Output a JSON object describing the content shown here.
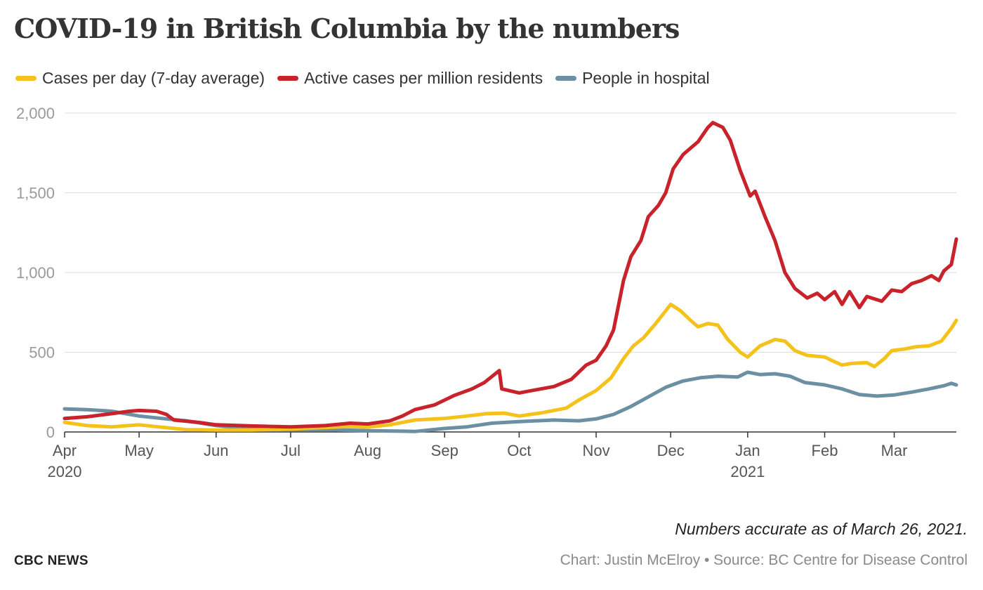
{
  "header": {
    "title": "COVID-19 in British Columbia by the numbers"
  },
  "footer": {
    "note": "Numbers accurate as of March 26, 2021.",
    "brand": "CBC NEWS",
    "credit": "Chart: Justin McElroy • Source: BC Centre for Disease Control"
  },
  "chart_data": {
    "type": "line",
    "title": "COVID-19 in British Columbia by the numbers",
    "xlabel": "",
    "ylabel": "",
    "ylim": [
      0,
      2000
    ],
    "xlim": [
      "2020-04-01",
      "2021-03-26"
    ],
    "y_ticks": [
      "0",
      "500",
      "1,000",
      "1,500",
      "2,000"
    ],
    "y_tick_values": [
      0,
      500,
      1000,
      1500,
      2000
    ],
    "x_ticks": [
      {
        "date": "2020-04-01",
        "label": "Apr",
        "sublabel": "2020"
      },
      {
        "date": "2020-05-01",
        "label": "May",
        "sublabel": ""
      },
      {
        "date": "2020-06-01",
        "label": "Jun",
        "sublabel": ""
      },
      {
        "date": "2020-07-01",
        "label": "Jul",
        "sublabel": ""
      },
      {
        "date": "2020-08-01",
        "label": "Aug",
        "sublabel": ""
      },
      {
        "date": "2020-09-01",
        "label": "Sep",
        "sublabel": ""
      },
      {
        "date": "2020-10-01",
        "label": "Oct",
        "sublabel": ""
      },
      {
        "date": "2020-11-01",
        "label": "Nov",
        "sublabel": ""
      },
      {
        "date": "2020-12-01",
        "label": "Dec",
        "sublabel": ""
      },
      {
        "date": "2021-01-01",
        "label": "Jan",
        "sublabel": "2021"
      },
      {
        "date": "2021-02-01",
        "label": "Feb",
        "sublabel": ""
      },
      {
        "date": "2021-03-01",
        "label": "Mar",
        "sublabel": ""
      }
    ],
    "grid": true,
    "legend_position": "top-left",
    "series": [
      {
        "name": "Cases per day (7-day average)",
        "color": "#f5c21b",
        "points": [
          [
            "2020-04-01",
            60
          ],
          [
            "2020-04-10",
            40
          ],
          [
            "2020-04-20",
            32
          ],
          [
            "2020-05-01",
            45
          ],
          [
            "2020-05-10",
            30
          ],
          [
            "2020-05-20",
            15
          ],
          [
            "2020-06-01",
            12
          ],
          [
            "2020-06-15",
            12
          ],
          [
            "2020-07-01",
            18
          ],
          [
            "2020-07-15",
            28
          ],
          [
            "2020-07-25",
            35
          ],
          [
            "2020-08-01",
            30
          ],
          [
            "2020-08-10",
            45
          ],
          [
            "2020-08-20",
            75
          ],
          [
            "2020-09-01",
            85
          ],
          [
            "2020-09-10",
            100
          ],
          [
            "2020-09-18",
            115
          ],
          [
            "2020-09-25",
            118
          ],
          [
            "2020-10-01",
            100
          ],
          [
            "2020-10-10",
            120
          ],
          [
            "2020-10-20",
            150
          ],
          [
            "2020-10-25",
            200
          ],
          [
            "2020-11-01",
            260
          ],
          [
            "2020-11-07",
            340
          ],
          [
            "2020-11-12",
            460
          ],
          [
            "2020-11-16",
            540
          ],
          [
            "2020-11-20",
            590
          ],
          [
            "2020-11-25",
            680
          ],
          [
            "2020-11-29",
            760
          ],
          [
            "2020-12-01",
            800
          ],
          [
            "2020-12-05",
            760
          ],
          [
            "2020-12-09",
            700
          ],
          [
            "2020-12-12",
            660
          ],
          [
            "2020-12-16",
            680
          ],
          [
            "2020-12-20",
            670
          ],
          [
            "2020-12-24",
            580
          ],
          [
            "2020-12-29",
            500
          ],
          [
            "2021-01-01",
            470
          ],
          [
            "2021-01-06",
            540
          ],
          [
            "2021-01-12",
            580
          ],
          [
            "2021-01-16",
            570
          ],
          [
            "2021-01-20",
            510
          ],
          [
            "2021-01-25",
            480
          ],
          [
            "2021-02-01",
            470
          ],
          [
            "2021-02-05",
            440
          ],
          [
            "2021-02-08",
            420
          ],
          [
            "2021-02-12",
            430
          ],
          [
            "2021-02-18",
            435
          ],
          [
            "2021-02-21",
            410
          ],
          [
            "2021-02-25",
            460
          ],
          [
            "2021-02-28",
            510
          ],
          [
            "2021-03-05",
            520
          ],
          [
            "2021-03-10",
            535
          ],
          [
            "2021-03-15",
            540
          ],
          [
            "2021-03-20",
            570
          ],
          [
            "2021-03-24",
            650
          ],
          [
            "2021-03-26",
            700
          ]
        ]
      },
      {
        "name": "Active cases per million residents",
        "color": "#c8222a",
        "points": [
          [
            "2020-04-01",
            85
          ],
          [
            "2020-04-10",
            95
          ],
          [
            "2020-04-20",
            115
          ],
          [
            "2020-04-27",
            130
          ],
          [
            "2020-05-01",
            135
          ],
          [
            "2020-05-08",
            130
          ],
          [
            "2020-05-12",
            110
          ],
          [
            "2020-05-15",
            75
          ],
          [
            "2020-05-25",
            60
          ],
          [
            "2020-06-01",
            45
          ],
          [
            "2020-06-15",
            38
          ],
          [
            "2020-07-01",
            32
          ],
          [
            "2020-07-15",
            40
          ],
          [
            "2020-07-25",
            55
          ],
          [
            "2020-08-01",
            50
          ],
          [
            "2020-08-10",
            70
          ],
          [
            "2020-08-15",
            100
          ],
          [
            "2020-08-20",
            140
          ],
          [
            "2020-08-28",
            170
          ],
          [
            "2020-09-05",
            230
          ],
          [
            "2020-09-12",
            270
          ],
          [
            "2020-09-17",
            310
          ],
          [
            "2020-09-21",
            360
          ],
          [
            "2020-09-23",
            385
          ],
          [
            "2020-09-24",
            270
          ],
          [
            "2020-10-01",
            245
          ],
          [
            "2020-10-08",
            265
          ],
          [
            "2020-10-15",
            285
          ],
          [
            "2020-10-22",
            330
          ],
          [
            "2020-10-28",
            420
          ],
          [
            "2020-11-01",
            450
          ],
          [
            "2020-11-05",
            540
          ],
          [
            "2020-11-08",
            640
          ],
          [
            "2020-11-12",
            950
          ],
          [
            "2020-11-15",
            1100
          ],
          [
            "2020-11-19",
            1200
          ],
          [
            "2020-11-22",
            1350
          ],
          [
            "2020-11-26",
            1420
          ],
          [
            "2020-11-29",
            1500
          ],
          [
            "2020-12-02",
            1650
          ],
          [
            "2020-12-06",
            1740
          ],
          [
            "2020-12-09",
            1780
          ],
          [
            "2020-12-12",
            1820
          ],
          [
            "2020-12-16",
            1910
          ],
          [
            "2020-12-18",
            1940
          ],
          [
            "2020-12-22",
            1910
          ],
          [
            "2020-12-25",
            1830
          ],
          [
            "2020-12-29",
            1640
          ],
          [
            "2021-01-02",
            1480
          ],
          [
            "2021-01-04",
            1510
          ],
          [
            "2021-01-08",
            1350
          ],
          [
            "2021-01-12",
            1200
          ],
          [
            "2021-01-16",
            1000
          ],
          [
            "2021-01-20",
            900
          ],
          [
            "2021-01-25",
            840
          ],
          [
            "2021-01-29",
            870
          ],
          [
            "2021-02-01",
            830
          ],
          [
            "2021-02-05",
            880
          ],
          [
            "2021-02-08",
            800
          ],
          [
            "2021-02-11",
            880
          ],
          [
            "2021-02-15",
            780
          ],
          [
            "2021-02-18",
            850
          ],
          [
            "2021-02-24",
            820
          ],
          [
            "2021-02-28",
            890
          ],
          [
            "2021-03-04",
            880
          ],
          [
            "2021-03-08",
            930
          ],
          [
            "2021-03-12",
            950
          ],
          [
            "2021-03-16",
            980
          ],
          [
            "2021-03-19",
            950
          ],
          [
            "2021-03-21",
            1010
          ],
          [
            "2021-03-24",
            1050
          ],
          [
            "2021-03-26",
            1210
          ]
        ]
      },
      {
        "name": "People in hospital",
        "color": "#6b8fa3",
        "points": [
          [
            "2020-04-01",
            145
          ],
          [
            "2020-04-10",
            140
          ],
          [
            "2020-04-20",
            130
          ],
          [
            "2020-05-01",
            100
          ],
          [
            "2020-05-10",
            85
          ],
          [
            "2020-05-20",
            70
          ],
          [
            "2020-06-01",
            40
          ],
          [
            "2020-06-15",
            20
          ],
          [
            "2020-07-01",
            15
          ],
          [
            "2020-07-15",
            15
          ],
          [
            "2020-08-01",
            8
          ],
          [
            "2020-08-15",
            5
          ],
          [
            "2020-08-20",
            3
          ],
          [
            "2020-09-01",
            22
          ],
          [
            "2020-09-10",
            32
          ],
          [
            "2020-09-20",
            55
          ],
          [
            "2020-10-01",
            65
          ],
          [
            "2020-10-15",
            75
          ],
          [
            "2020-10-25",
            70
          ],
          [
            "2020-11-01",
            82
          ],
          [
            "2020-11-08",
            110
          ],
          [
            "2020-11-15",
            160
          ],
          [
            "2020-11-22",
            220
          ],
          [
            "2020-11-29",
            280
          ],
          [
            "2020-12-06",
            320
          ],
          [
            "2020-12-13",
            340
          ],
          [
            "2020-12-20",
            350
          ],
          [
            "2020-12-28",
            345
          ],
          [
            "2021-01-01",
            375
          ],
          [
            "2021-01-06",
            360
          ],
          [
            "2021-01-12",
            365
          ],
          [
            "2021-01-18",
            350
          ],
          [
            "2021-01-24",
            310
          ],
          [
            "2021-02-01",
            295
          ],
          [
            "2021-02-08",
            270
          ],
          [
            "2021-02-15",
            235
          ],
          [
            "2021-02-22",
            225
          ],
          [
            "2021-03-01",
            232
          ],
          [
            "2021-03-08",
            250
          ],
          [
            "2021-03-15",
            270
          ],
          [
            "2021-03-21",
            290
          ],
          [
            "2021-03-24",
            305
          ],
          [
            "2021-03-26",
            295
          ]
        ]
      }
    ]
  }
}
